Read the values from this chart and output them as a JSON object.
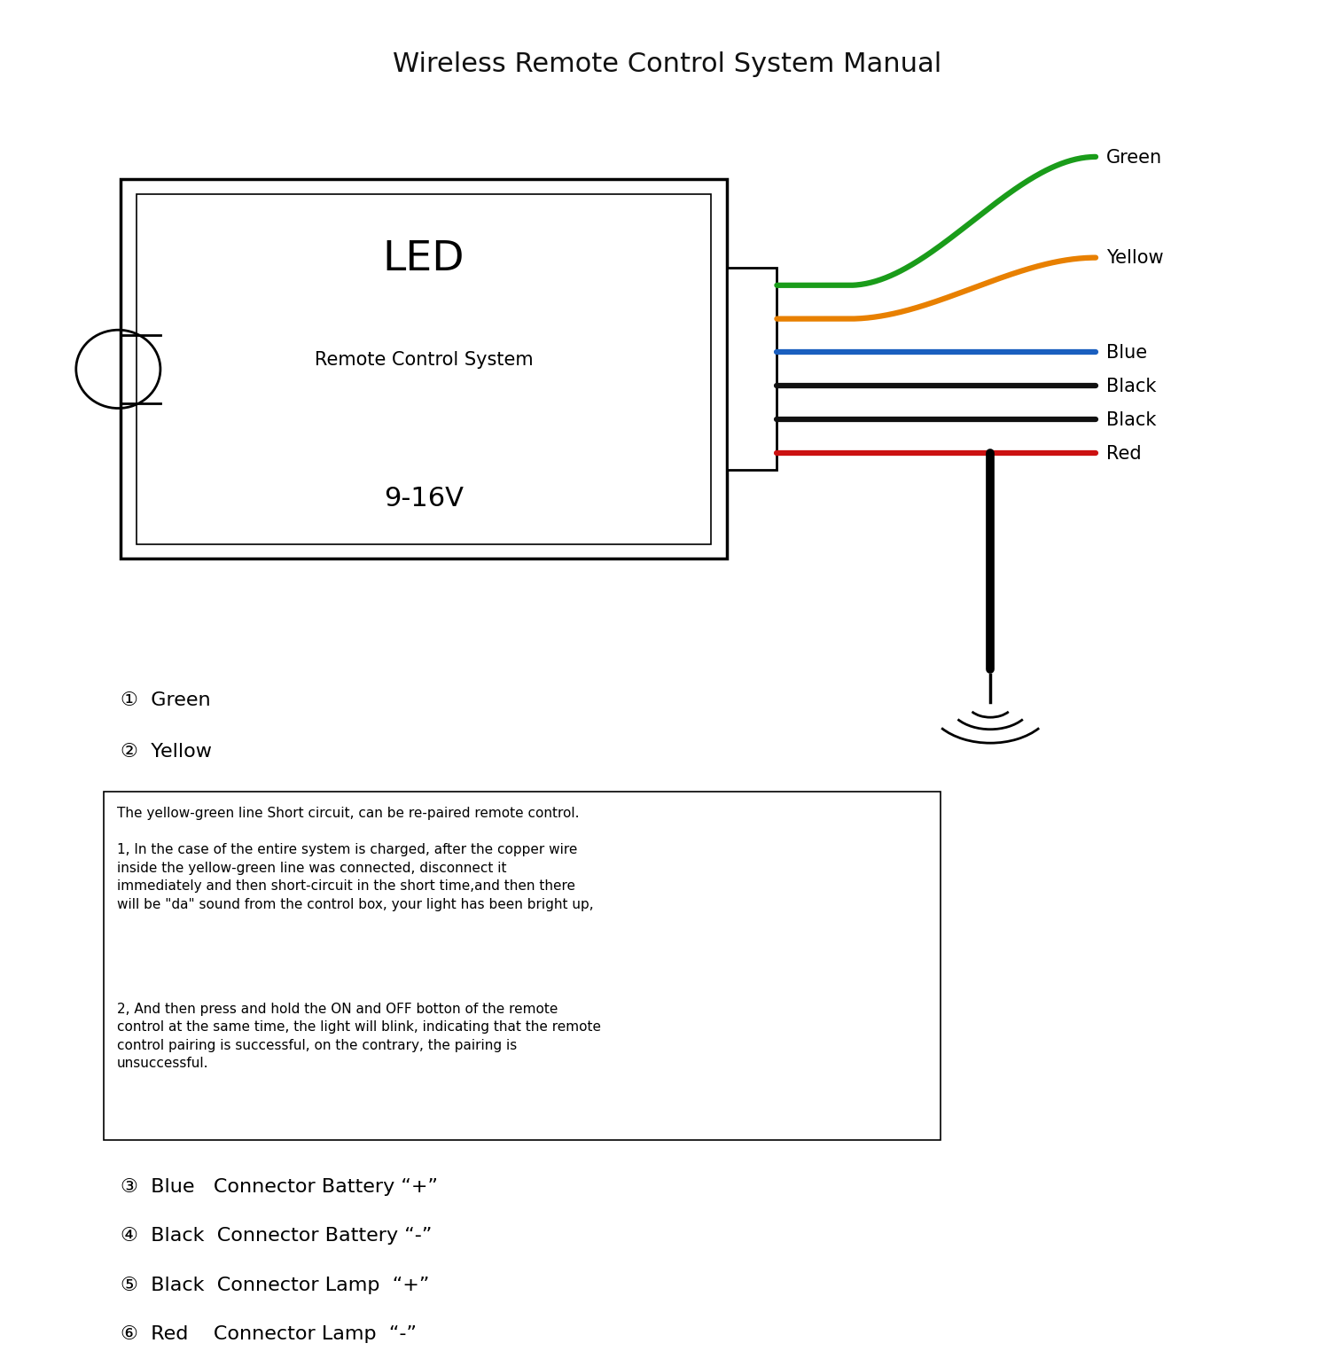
{
  "title": "Wireless Remote Control System Manual",
  "box_label_line1": "LED",
  "box_label_line2": "Remote Control System",
  "box_label_line3": "9-16V",
  "wire_colors": [
    "#1a9c1a",
    "#e88000",
    "#1a5fbf",
    "#111111",
    "#111111",
    "#cc1111"
  ],
  "wire_labels": [
    "Green",
    "Yellow",
    "Blue",
    "Black",
    "Black",
    "Red"
  ],
  "legend_items": [
    "①  Green",
    "②  Yellow"
  ],
  "connector_items": [
    "③  Blue   Connector Battery “+”",
    "④  Black  Connector Battery “-”",
    "⑤  Black  Connector Lamp  “+”",
    "⑥  Red    Connector Lamp  “-”"
  ],
  "box_text_line1": "The yellow-green line Short circuit, can be re-paired remote control.",
  "box_text_para1": "1, In the case of the entire system is charged, after the copper wire\ninside the yellow-green line was connected, disconnect it\nimmediately and then short-circuit in the short time,and then there\nwill be \"da\" sound from the control box, your light has been bright up,",
  "box_text_para2": "2, And then press and hold the ON and OFF botton of the remote\ncontrol at the same time, the light will blink, indicating that the remote\ncontrol pairing is successful, on the contrary, the pairing is\nunsuccessful.",
  "bg_color": "#ffffff",
  "fg_color": "#000000"
}
